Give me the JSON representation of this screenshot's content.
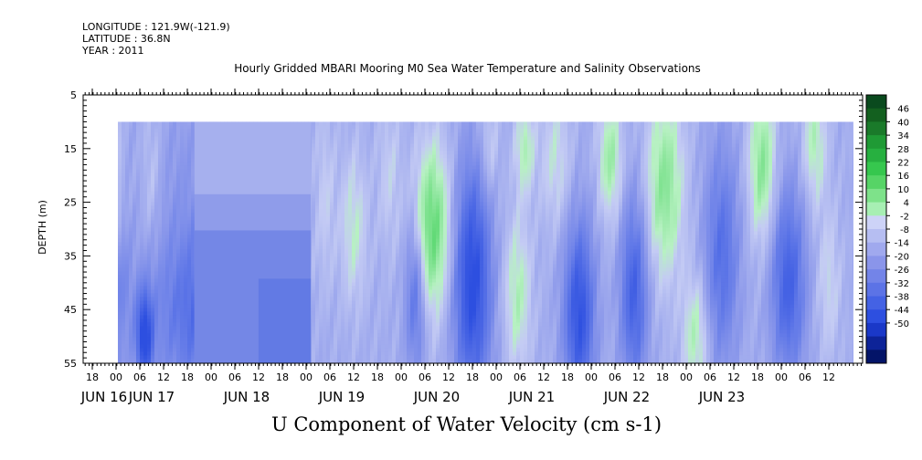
{
  "header": {
    "longitude": "LONGITUDE : 121.9W(-121.9)",
    "latitude": "LATITUDE : 36.8N",
    "year": "YEAR : 2011",
    "title": "Hourly Gridded MBARI Mooring M0 Sea Water Temperature and Salinity Observations"
  },
  "chart_data": {
    "type": "heatmap",
    "title": "Hourly Gridded MBARI Mooring M0 Sea Water Temperature and Salinity Observations",
    "variable_label": "U Component of Water Velocity (cm s-1)",
    "ylabel": "DEPTH (m)",
    "y_ticks": [
      5,
      15,
      25,
      35,
      45,
      55
    ],
    "ylim": [
      5,
      55
    ],
    "data_depth_range": [
      10,
      55
    ],
    "hour_ticks": [
      "18",
      "00",
      "06",
      "12",
      "18",
      "00",
      "06",
      "12",
      "18",
      "00",
      "06",
      "12",
      "18",
      "00",
      "06",
      "12",
      "18",
      "00",
      "06",
      "12",
      "18",
      "00",
      "06",
      "12",
      "18",
      "00",
      "06",
      "12",
      "18",
      "00",
      "06",
      "12"
    ],
    "day_labels": [
      {
        "label": "JUN 16",
        "hour_index": 0
      },
      {
        "label": "JUN 17",
        "hour_index": 2
      },
      {
        "label": "JUN 18",
        "hour_index": 6
      },
      {
        "label": "JUN 19",
        "hour_index": 10
      },
      {
        "label": "JUN 20",
        "hour_index": 14
      },
      {
        "label": "JUN 21",
        "hour_index": 18
      },
      {
        "label": "JUN 22",
        "hour_index": 22
      },
      {
        "label": "JUN 23",
        "hour_index": 26
      }
    ],
    "colorbar_levels": [
      "46",
      "40",
      "34",
      "28",
      "22",
      "16",
      "10",
      "4",
      "-2",
      "-8",
      "-14",
      "-20",
      "-26",
      "-32",
      "-38",
      "-44",
      "-50"
    ],
    "colorbar_colors": [
      "#0a4a1e",
      "#13601f",
      "#1a7a2a",
      "#1f9a35",
      "#27b040",
      "#36c74e",
      "#56d466",
      "#7ee28a",
      "#a7efb3",
      "#cdd3f7",
      "#b6bef2",
      "#a0a9ee",
      "#8a95ea",
      "#7384e8",
      "#5c73e6",
      "#4462e4",
      "#2d4fe0",
      "#1a38c8",
      "#0d2398",
      "#031468"
    ],
    "color_stops": [
      {
        "value": -30,
        "color": "#2d4fe0"
      },
      {
        "value": -20,
        "color": "#5b74e7"
      },
      {
        "value": -10,
        "color": "#909ceb"
      },
      {
        "value": -2,
        "color": "#c4cbf4"
      },
      {
        "value": 2,
        "color": "#b7f1c2"
      },
      {
        "value": 10,
        "color": "#6cdd7f"
      },
      {
        "value": 16,
        "color": "#3ecf59"
      }
    ],
    "features": [
      {
        "t": 1.0,
        "z": 18,
        "st": 0.2,
        "sz": 8,
        "a": 4
      },
      {
        "t": 1.05,
        "z": 33,
        "st": 0.15,
        "sz": 10,
        "a": 3
      },
      {
        "t": 1.3,
        "z": 50,
        "st": 0.18,
        "sz": 6,
        "a": 4
      },
      {
        "t": 1.15,
        "z": 45,
        "st": 0.3,
        "sz": 10,
        "a": -10
      },
      {
        "t": 2.5,
        "z": 20,
        "st": 0.3,
        "sz": 10,
        "a": 5
      },
      {
        "t": 2.2,
        "z": 50,
        "st": 0.25,
        "sz": 6,
        "a": -22
      },
      {
        "t": 4.0,
        "z": 17,
        "st": 1.5,
        "sz": 10,
        "a": -3
      },
      {
        "t": 5.0,
        "z": 45,
        "st": 1.8,
        "sz": 12,
        "a": -16
      },
      {
        "t": 7.8,
        "z": 22,
        "st": 0.45,
        "sz": 12,
        "a": 8
      },
      {
        "t": 8.8,
        "z": 42,
        "st": 0.35,
        "sz": 8,
        "a": 4
      },
      {
        "t": 9.8,
        "z": 25,
        "st": 0.3,
        "sz": 12,
        "a": 5
      },
      {
        "t": 11.0,
        "z": 30,
        "st": 0.4,
        "sz": 10,
        "a": 8
      },
      {
        "t": 12.5,
        "z": 20,
        "st": 0.35,
        "sz": 10,
        "a": 5
      },
      {
        "t": 13.6,
        "z": 42,
        "st": 0.3,
        "sz": 10,
        "a": -14
      },
      {
        "t": 14.3,
        "z": 30,
        "st": 0.55,
        "sz": 11,
        "a": 18
      },
      {
        "t": 16.0,
        "z": 40,
        "st": 0.55,
        "sz": 15,
        "a": -24
      },
      {
        "t": 16.7,
        "z": 15,
        "st": 0.3,
        "sz": 7,
        "a": 6
      },
      {
        "t": 17.9,
        "z": 42,
        "st": 0.4,
        "sz": 10,
        "a": 10
      },
      {
        "t": 18.2,
        "z": 15,
        "st": 0.3,
        "sz": 6,
        "a": 10
      },
      {
        "t": 19.5,
        "z": 17,
        "st": 0.45,
        "sz": 9,
        "a": 7
      },
      {
        "t": 20.5,
        "z": 46,
        "st": 0.45,
        "sz": 12,
        "a": -22
      },
      {
        "t": 21.8,
        "z": 17,
        "st": 0.35,
        "sz": 8,
        "a": 12
      },
      {
        "t": 22.8,
        "z": 42,
        "st": 0.4,
        "sz": 12,
        "a": -18
      },
      {
        "t": 24.1,
        "z": 22,
        "st": 0.55,
        "sz": 12,
        "a": 14
      },
      {
        "t": 25.4,
        "z": 50,
        "st": 0.4,
        "sz": 8,
        "a": 10
      },
      {
        "t": 26.5,
        "z": 35,
        "st": 0.5,
        "sz": 14,
        "a": -14
      },
      {
        "t": 28.2,
        "z": 18,
        "st": 0.4,
        "sz": 10,
        "a": 14
      },
      {
        "t": 29.3,
        "z": 40,
        "st": 0.5,
        "sz": 12,
        "a": -18
      },
      {
        "t": 30.4,
        "z": 14,
        "st": 0.35,
        "sz": 8,
        "a": 10
      },
      {
        "t": 31.0,
        "z": 40,
        "st": 0.35,
        "sz": 10,
        "a": 6
      }
    ]
  }
}
